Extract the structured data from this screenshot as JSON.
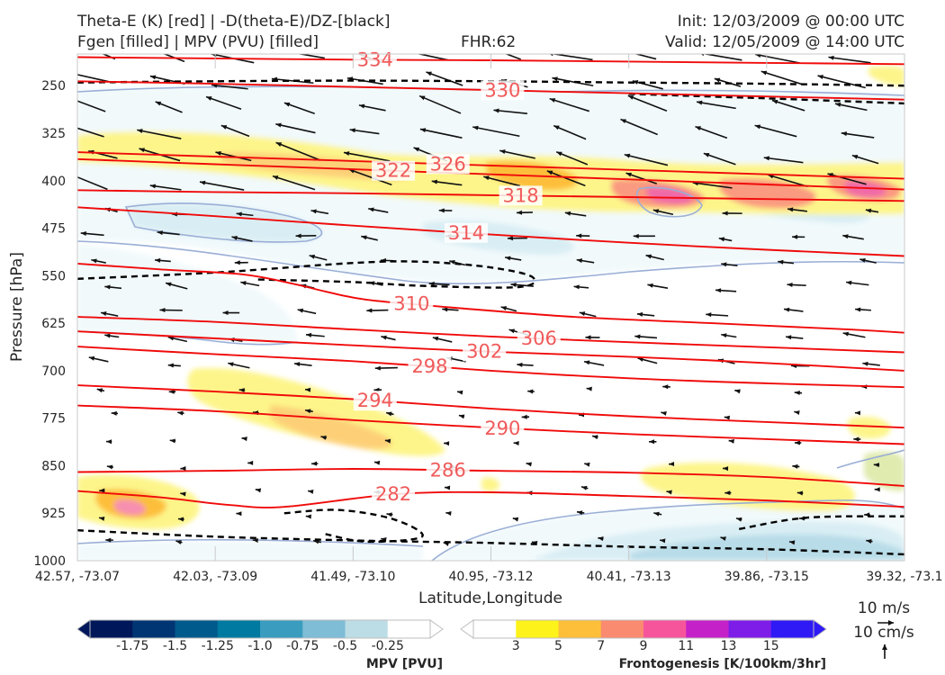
{
  "header": {
    "line1_left": "Theta-E (K) [red] | -D(theta-E)/DZ-[black]",
    "line2_left": "Fgen [filled] | MPV (PVU) [filled]",
    "fhr": "FHR:62",
    "init": "Init: 12/03/2009 @ 00:00 UTC",
    "valid": "Valid: 12/05/2009 @ 14:00 UTC"
  },
  "colors": {
    "theta_e": "#f00a0a",
    "theta_e_label": "#f05a5a",
    "stability": "#000000",
    "mpv_outline": "#9aaed6",
    "mpv_fill": [
      "#00175a",
      "#003573",
      "#005a8c",
      "#007aa0",
      "#3a9dbf",
      "#7fbcd6",
      "#bcdde6",
      "#ffffff"
    ],
    "fgen_fill": [
      "#ffffff",
      "#fdf31a",
      "#fdbf3a",
      "#fa8a70",
      "#f7559b",
      "#c521c8",
      "#7e1de8",
      "#2f19f5"
    ]
  },
  "chart_data": {
    "type": "contour",
    "title": "Theta-E (K) [red] | -D(theta-E)/DZ-[black] | Fgen [filled] | MPV (PVU) [filled]",
    "xlabel": "Latitude,Longitude",
    "ylabel": "Pressure [hPa]",
    "x_ticks": [
      "42.57, -73.07",
      "42.03, -73.09",
      "41.49, -73.10",
      "40.95, -73.12",
      "40.41, -73.13",
      "39.86, -73.15",
      "39.32, -73.1"
    ],
    "y_ticks": [
      250,
      325,
      400,
      475,
      550,
      625,
      700,
      775,
      850,
      925,
      1000
    ],
    "ylim": [
      1000,
      200
    ],
    "x_range_index": [
      0,
      6
    ],
    "theta_e_contours": [
      {
        "value": 334,
        "points": [
          [
            0,
            205
          ],
          [
            1,
            207
          ],
          [
            2,
            209
          ],
          [
            3,
            210
          ],
          [
            4,
            212
          ],
          [
            5,
            214
          ],
          [
            6,
            216
          ]
        ]
      },
      {
        "value": 330,
        "points": [
          [
            0,
            243
          ],
          [
            1,
            247
          ],
          [
            2,
            252
          ],
          [
            3,
            257
          ],
          [
            4,
            262
          ],
          [
            5,
            267
          ],
          [
            6,
            272
          ]
        ]
      },
      {
        "value": 326,
        "points": [
          [
            0,
            355
          ],
          [
            1,
            362
          ],
          [
            2,
            369
          ],
          [
            3,
            376
          ],
          [
            4,
            383
          ],
          [
            5,
            390
          ],
          [
            6,
            397
          ]
        ]
      },
      {
        "value": 322,
        "points": [
          [
            0,
            366
          ],
          [
            1,
            374
          ],
          [
            2,
            382
          ],
          [
            3,
            390
          ],
          [
            4,
            398
          ],
          [
            5,
            406
          ],
          [
            6,
            414
          ]
        ]
      },
      {
        "value": 318,
        "points": [
          [
            0,
            415
          ],
          [
            1,
            418
          ],
          [
            2,
            420
          ],
          [
            3,
            423
          ],
          [
            4,
            426
          ],
          [
            5,
            429
          ],
          [
            6,
            432
          ]
        ]
      },
      {
        "value": 314,
        "points": [
          [
            0,
            442
          ],
          [
            1,
            456
          ],
          [
            2,
            471
          ],
          [
            3,
            485
          ],
          [
            4,
            498
          ],
          [
            5,
            509
          ],
          [
            6,
            519
          ]
        ]
      },
      {
        "value": 310,
        "points": [
          [
            0,
            531
          ],
          [
            0.6,
            540
          ],
          [
            1.2,
            548
          ],
          [
            1.55,
            562
          ],
          [
            1.8,
            575
          ],
          [
            2.1,
            588
          ],
          [
            2.7,
            600
          ],
          [
            3.6,
            615
          ],
          [
            4.6,
            625
          ],
          [
            5.6,
            635
          ],
          [
            6,
            640
          ]
        ]
      },
      {
        "value": 306,
        "points": [
          [
            0,
            615
          ],
          [
            1,
            623
          ],
          [
            2,
            635
          ],
          [
            3,
            646
          ],
          [
            4,
            655
          ],
          [
            5,
            663
          ],
          [
            6,
            671
          ]
        ]
      },
      {
        "value": 302,
        "points": [
          [
            0,
            638
          ],
          [
            1,
            649
          ],
          [
            2,
            660
          ],
          [
            3,
            670
          ],
          [
            4,
            678
          ],
          [
            5,
            688
          ],
          [
            6,
            700
          ]
        ]
      },
      {
        "value": 298,
        "points": [
          [
            0,
            662
          ],
          [
            1,
            674
          ],
          [
            2,
            685
          ],
          [
            3,
            700
          ],
          [
            4,
            712
          ],
          [
            5,
            720
          ],
          [
            6,
            726
          ]
        ]
      },
      {
        "value": 294,
        "points": [
          [
            0,
            723
          ],
          [
            1,
            733
          ],
          [
            2,
            745
          ],
          [
            3,
            760
          ],
          [
            4,
            772
          ],
          [
            5,
            781
          ],
          [
            6,
            790
          ]
        ]
      },
      {
        "value": 290,
        "points": [
          [
            0,
            755
          ],
          [
            1,
            764
          ],
          [
            2,
            778
          ],
          [
            3,
            790
          ],
          [
            4,
            800
          ],
          [
            5,
            808
          ],
          [
            6,
            816
          ]
        ]
      },
      {
        "value": 286,
        "points": [
          [
            0,
            860
          ],
          [
            1,
            858
          ],
          [
            2,
            855
          ],
          [
            3,
            858
          ],
          [
            4,
            861
          ],
          [
            5,
            868
          ],
          [
            6,
            882
          ]
        ]
      },
      {
        "value": 282,
        "points": [
          [
            0,
            890
          ],
          [
            0.6,
            900
          ],
          [
            1.1,
            912
          ],
          [
            1.5,
            915
          ],
          [
            2.3,
            895
          ],
          [
            3,
            892
          ],
          [
            4,
            898
          ],
          [
            5,
            905
          ],
          [
            6,
            915
          ]
        ]
      }
    ],
    "stability_contours": [
      {
        "points": [
          [
            0,
            245
          ],
          [
            1,
            243
          ],
          [
            2,
            242
          ],
          [
            3,
            243
          ],
          [
            4,
            245
          ],
          [
            5,
            247
          ],
          [
            6,
            250
          ]
        ]
      },
      {
        "points": [
          [
            4,
            263
          ],
          [
            5,
            270
          ],
          [
            6,
            278
          ]
        ]
      },
      {
        "points": [
          [
            0,
            555
          ],
          [
            1,
            545
          ],
          [
            2,
            530
          ],
          [
            2.5,
            528
          ],
          [
            3,
            537
          ],
          [
            3.3,
            552
          ],
          [
            3.2,
            568
          ],
          [
            2.5,
            566
          ],
          [
            2,
            560
          ],
          [
            1.3,
            556
          ]
        ]
      },
      {
        "points": [
          [
            0,
            952
          ],
          [
            1,
            962
          ],
          [
            2,
            968
          ],
          [
            3,
            972
          ],
          [
            4,
            978
          ],
          [
            5,
            982
          ],
          [
            6,
            990
          ]
        ]
      },
      {
        "points": [
          [
            1.5,
            925
          ],
          [
            1.9,
            920
          ],
          [
            2.3,
            935
          ],
          [
            2.5,
            962
          ],
          [
            2.1,
            970
          ],
          [
            1.8,
            958
          ]
        ]
      },
      {
        "points": [
          [
            4.8,
            950
          ],
          [
            5.3,
            932
          ],
          [
            6,
            930
          ]
        ]
      }
    ],
    "mpv_colorbar": {
      "label": "MPV [PVU]",
      "ticks": [
        "-1.75",
        "-1.5",
        "-1.25",
        "-1.0",
        "-0.75",
        "-0.5",
        "-0.25"
      ]
    },
    "fgen_colorbar": {
      "label": "Frontogenesis [K/100km/3hr]",
      "ticks": [
        "3",
        "5",
        "7",
        "9",
        "11",
        "13",
        "15"
      ]
    },
    "wind_reference": {
      "horizontal": "10 m/s",
      "vertical": "10 cm/s"
    }
  }
}
